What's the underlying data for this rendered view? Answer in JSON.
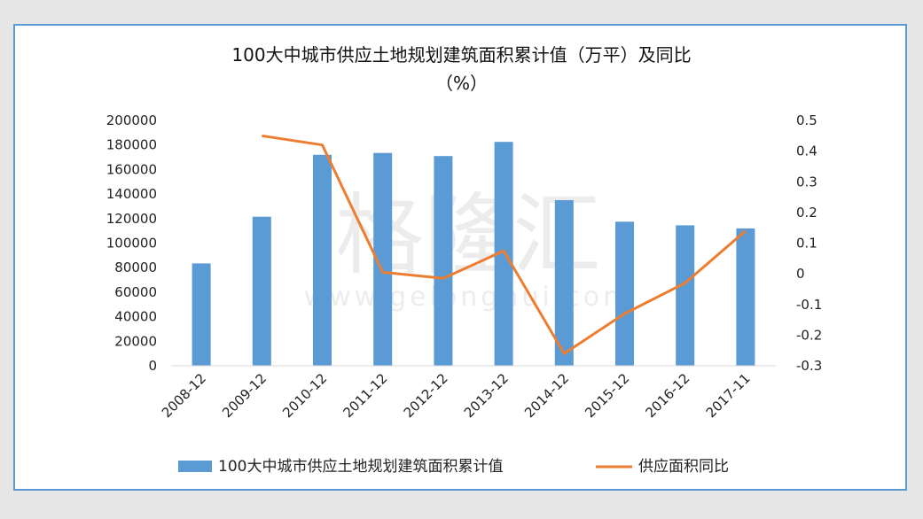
{
  "chart_data": {
    "type": "bar",
    "title_line1": "100大中城市供应土地规划建筑面积累计值（万平）及同比",
    "title_line2": "（%）",
    "categories": [
      "2008-12",
      "2009-12",
      "2010-12",
      "2011-12",
      "2012-12",
      "2013-12",
      "2014-12",
      "2015-12",
      "2016-12",
      "2017-11"
    ],
    "series": [
      {
        "name": "100大中城市供应土地规划建筑面积累计值",
        "type": "bar",
        "axis": "left",
        "color": "#5b9bd5",
        "values": [
          83500,
          121500,
          172000,
          173500,
          171000,
          182500,
          135000,
          117500,
          114500,
          112000
        ]
      },
      {
        "name": "供应面积同比",
        "type": "line",
        "axis": "right",
        "color": "#ed7d31",
        "values": [
          null,
          0.45,
          0.42,
          0.005,
          -0.015,
          0.075,
          -0.26,
          -0.13,
          -0.03,
          0.14
        ]
      }
    ],
    "y_left": {
      "min": 0,
      "max": 200000,
      "ticks": [
        "200000",
        "180000",
        "160000",
        "140000",
        "120000",
        "100000",
        "80000",
        "60000",
        "40000",
        "20000",
        "0"
      ]
    },
    "y_right": {
      "min": -0.3,
      "max": 0.5,
      "ticks": [
        "0.5",
        "0.4",
        "0.3",
        "0.2",
        "0.1",
        "0",
        "-0.1",
        "-0.2",
        "-0.3"
      ]
    },
    "grid": false,
    "legend_position": "bottom",
    "watermark": "格隆汇 www.gelonghui.com"
  }
}
